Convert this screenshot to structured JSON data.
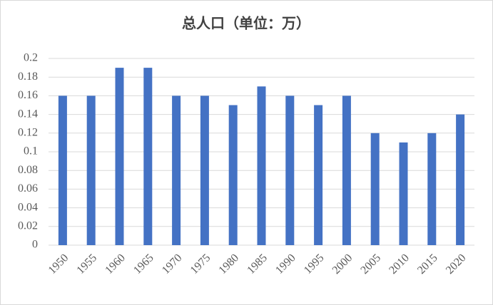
{
  "chart_data": {
    "type": "bar",
    "title": "总人口（单位：万）",
    "categories": [
      "1950",
      "1955",
      "1960",
      "1965",
      "1970",
      "1975",
      "1980",
      "1985",
      "1990",
      "1995",
      "2000",
      "2005",
      "2010",
      "2015",
      "2020"
    ],
    "values": [
      0.16,
      0.16,
      0.19,
      0.19,
      0.16,
      0.16,
      0.15,
      0.17,
      0.16,
      0.15,
      0.16,
      0.12,
      0.11,
      0.12,
      0.14
    ],
    "color": "#4472c4",
    "ylim": [
      0,
      0.2
    ],
    "yticks": [
      0,
      0.02,
      0.04,
      0.06,
      0.08,
      0.1,
      0.12,
      0.14,
      0.16,
      0.18,
      0.2
    ],
    "grid": true
  }
}
